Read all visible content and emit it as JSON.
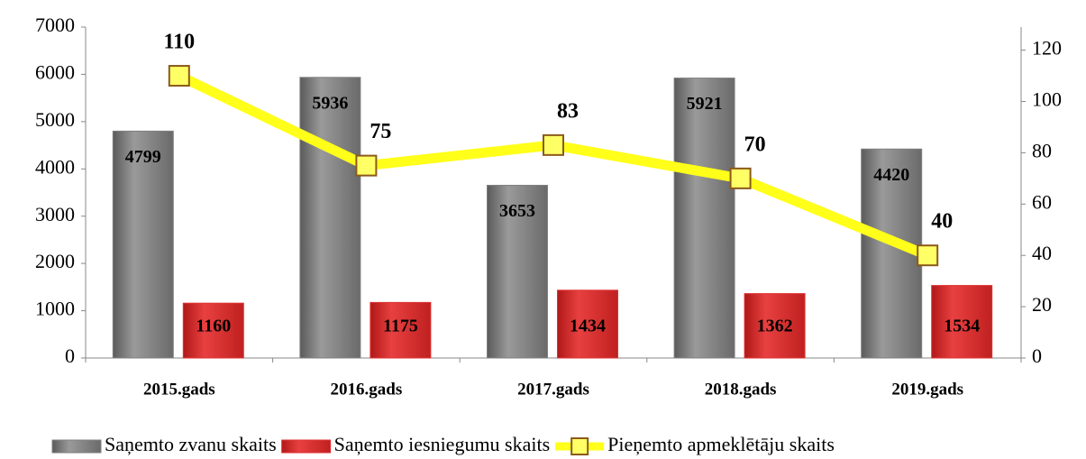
{
  "chart_data": {
    "type": "bar-line",
    "categories": [
      "2015.gads",
      "2016.gads",
      "2017.gads",
      "2018.gads",
      "2019.gads"
    ],
    "series": [
      {
        "name": "Saņemto zvanu skaits",
        "type": "bar",
        "color": "#808080",
        "values": [
          4799,
          5936,
          3653,
          5921,
          4420
        ]
      },
      {
        "name": "Saņemto iesniegumu skaits",
        "type": "bar",
        "color": "#e03232",
        "values": [
          1160,
          1175,
          1434,
          1362,
          1534
        ]
      },
      {
        "name": "Pieņemto apmeklētāju skaits",
        "type": "line",
        "axis": "y2",
        "color": "#ffff1a",
        "marker_color": "#ffff66",
        "values": [
          110,
          75,
          83,
          70,
          40
        ]
      }
    ],
    "ylim": [
      0,
      7000
    ],
    "yticks": [
      0,
      1000,
      2000,
      3000,
      4000,
      5000,
      6000,
      7000
    ],
    "y2lim": [
      0,
      129
    ],
    "y2ticks": [
      0,
      20,
      40,
      60,
      80,
      100,
      120
    ],
    "grid": false,
    "legend": "bottom"
  }
}
